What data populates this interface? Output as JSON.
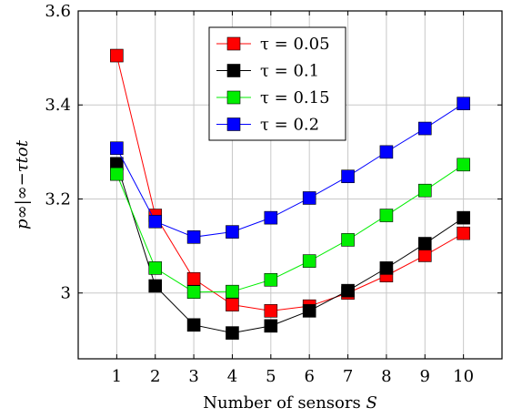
{
  "chart_data": {
    "type": "line",
    "xlabel_text": "Number of sensors ",
    "xlabel_var": "S",
    "ylabel": "p∞|∞−τtot",
    "x": [
      1,
      2,
      3,
      4,
      5,
      6,
      7,
      8,
      9,
      10
    ],
    "xlim": [
      0,
      11
    ],
    "ylim": [
      2.86,
      3.6
    ],
    "yticks": [
      3.0,
      3.2,
      3.4,
      3.6
    ],
    "ytick_labels": [
      "3",
      "3.2",
      "3.4",
      "3.6"
    ],
    "grid": true,
    "legend_position": "top-center",
    "series": [
      {
        "name": "τ = 0.05",
        "color": "#ff0000",
        "values": [
          3.505,
          3.165,
          3.03,
          2.975,
          2.962,
          2.972,
          3.0,
          3.037,
          3.08,
          3.127
        ]
      },
      {
        "name": "τ = 0.1",
        "color": "#000000",
        "values": [
          3.275,
          3.015,
          2.932,
          2.915,
          2.93,
          2.962,
          3.005,
          3.053,
          3.105,
          3.16
        ]
      },
      {
        "name": "τ = 0.15",
        "color": "#00ee00",
        "values": [
          3.253,
          3.053,
          3.002,
          3.003,
          3.028,
          3.068,
          3.113,
          3.165,
          3.218,
          3.273
        ]
      },
      {
        "name": "τ = 0.2",
        "color": "#0000ff",
        "values": [
          3.308,
          3.152,
          3.119,
          3.13,
          3.16,
          3.202,
          3.248,
          3.3,
          3.35,
          3.403
        ]
      }
    ]
  }
}
